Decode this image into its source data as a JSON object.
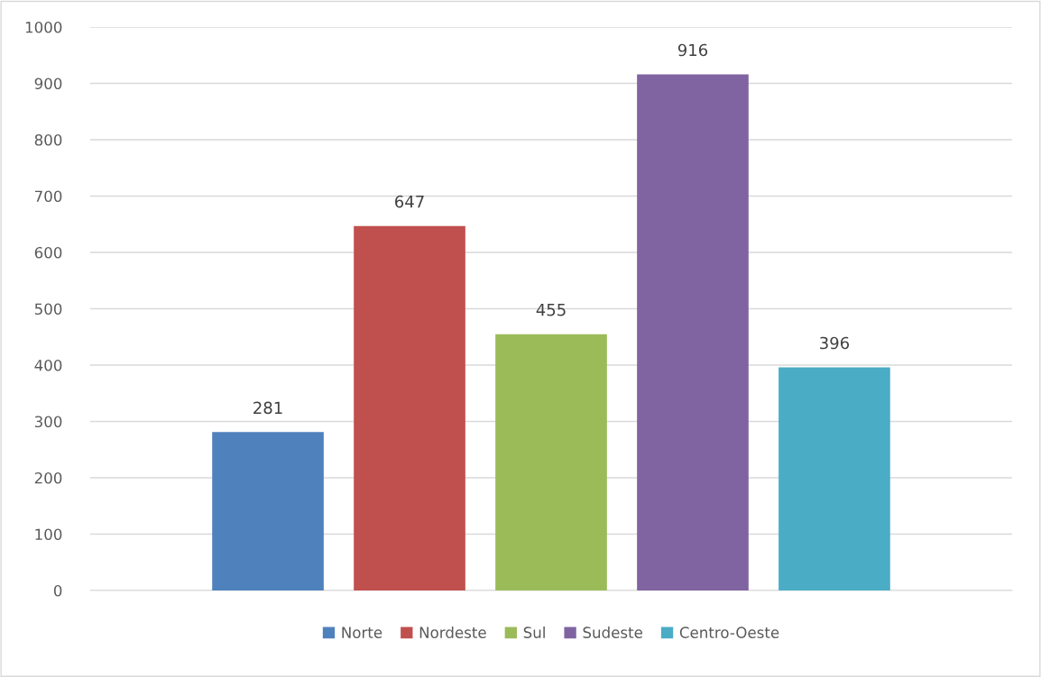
{
  "chart_data": {
    "type": "bar",
    "categories": [
      null
    ],
    "series": [
      {
        "name": "Norte",
        "color": "#4f81bd",
        "values": [
          281
        ]
      },
      {
        "name": "Nordeste",
        "color": "#c0504d",
        "values": [
          647
        ]
      },
      {
        "name": "Sul",
        "color": "#9bbb59",
        "values": [
          455
        ]
      },
      {
        "name": "Sudeste",
        "color": "#8064a2",
        "values": [
          916
        ]
      },
      {
        "name": "Centro-Oeste",
        "color": "#4bacc6",
        "values": [
          396
        ]
      }
    ],
    "ylim": [
      0,
      1000
    ],
    "yticks": [
      0,
      100,
      200,
      300,
      400,
      500,
      600,
      700,
      800,
      900,
      1000
    ],
    "grid": "y",
    "legend": "bottom",
    "data_labels": true
  }
}
